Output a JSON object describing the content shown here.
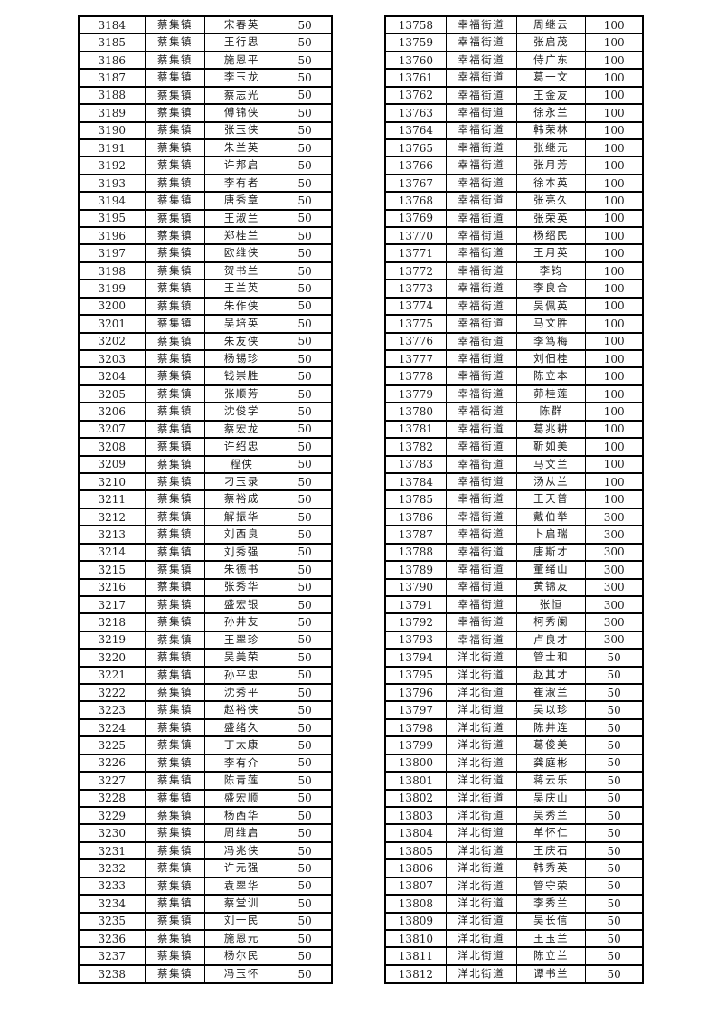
{
  "document": {
    "type": "scanned-roster-table-page",
    "background_color": "#ffffff",
    "text_color": "#1c1c1c",
    "border_color": "#000000"
  },
  "tables": [
    {
      "name": "left-roster",
      "columns": [
        "serial",
        "township",
        "name",
        "amount"
      ],
      "rows": [
        [
          "3184",
          "蔡集镇",
          "宋春英",
          "50"
        ],
        [
          "3185",
          "蔡集镇",
          "王行思",
          "50"
        ],
        [
          "3186",
          "蔡集镇",
          "施恩平",
          "50"
        ],
        [
          "3187",
          "蔡集镇",
          "李玉龙",
          "50"
        ],
        [
          "3188",
          "蔡集镇",
          "蔡志光",
          "50"
        ],
        [
          "3189",
          "蔡集镇",
          "傅锦侠",
          "50"
        ],
        [
          "3190",
          "蔡集镇",
          "张玉侠",
          "50"
        ],
        [
          "3191",
          "蔡集镇",
          "朱兰英",
          "50"
        ],
        [
          "3192",
          "蔡集镇",
          "许邦启",
          "50"
        ],
        [
          "3193",
          "蔡集镇",
          "李有者",
          "50"
        ],
        [
          "3194",
          "蔡集镇",
          "唐秀章",
          "50"
        ],
        [
          "3195",
          "蔡集镇",
          "王淑兰",
          "50"
        ],
        [
          "3196",
          "蔡集镇",
          "郑桂兰",
          "50"
        ],
        [
          "3197",
          "蔡集镇",
          "欧维侠",
          "50"
        ],
        [
          "3198",
          "蔡集镇",
          "贺书兰",
          "50"
        ],
        [
          "3199",
          "蔡集镇",
          "王兰英",
          "50"
        ],
        [
          "3200",
          "蔡集镇",
          "朱作侠",
          "50"
        ],
        [
          "3201",
          "蔡集镇",
          "吴培英",
          "50"
        ],
        [
          "3202",
          "蔡集镇",
          "朱友侠",
          "50"
        ],
        [
          "3203",
          "蔡集镇",
          "杨锡珍",
          "50"
        ],
        [
          "3204",
          "蔡集镇",
          "钱崇胜",
          "50"
        ],
        [
          "3205",
          "蔡集镇",
          "张顺芳",
          "50"
        ],
        [
          "3206",
          "蔡集镇",
          "沈俊学",
          "50"
        ],
        [
          "3207",
          "蔡集镇",
          "蔡宏龙",
          "50"
        ],
        [
          "3208",
          "蔡集镇",
          "许绍忠",
          "50"
        ],
        [
          "3209",
          "蔡集镇",
          "程侠",
          "50"
        ],
        [
          "3210",
          "蔡集镇",
          "刁玉录",
          "50"
        ],
        [
          "3211",
          "蔡集镇",
          "蔡裕成",
          "50"
        ],
        [
          "3212",
          "蔡集镇",
          "解振华",
          "50"
        ],
        [
          "3213",
          "蔡集镇",
          "刘西良",
          "50"
        ],
        [
          "3214",
          "蔡集镇",
          "刘秀强",
          "50"
        ],
        [
          "3215",
          "蔡集镇",
          "朱德书",
          "50"
        ],
        [
          "3216",
          "蔡集镇",
          "张秀华",
          "50"
        ],
        [
          "3217",
          "蔡集镇",
          "盛宏银",
          "50"
        ],
        [
          "3218",
          "蔡集镇",
          "孙井友",
          "50"
        ],
        [
          "3219",
          "蔡集镇",
          "王翠珍",
          "50"
        ],
        [
          "3220",
          "蔡集镇",
          "吴美荣",
          "50"
        ],
        [
          "3221",
          "蔡集镇",
          "孙平忠",
          "50"
        ],
        [
          "3222",
          "蔡集镇",
          "沈秀平",
          "50"
        ],
        [
          "3223",
          "蔡集镇",
          "赵裕侠",
          "50"
        ],
        [
          "3224",
          "蔡集镇",
          "盛绪久",
          "50"
        ],
        [
          "3225",
          "蔡集镇",
          "丁太康",
          "50"
        ],
        [
          "3226",
          "蔡集镇",
          "李有介",
          "50"
        ],
        [
          "3227",
          "蔡集镇",
          "陈青莲",
          "50"
        ],
        [
          "3228",
          "蔡集镇",
          "盛宏顺",
          "50"
        ],
        [
          "3229",
          "蔡集镇",
          "杨西华",
          "50"
        ],
        [
          "3230",
          "蔡集镇",
          "周维启",
          "50"
        ],
        [
          "3231",
          "蔡集镇",
          "冯兆侠",
          "50"
        ],
        [
          "3232",
          "蔡集镇",
          "许元强",
          "50"
        ],
        [
          "3233",
          "蔡集镇",
          "袁翠华",
          "50"
        ],
        [
          "3234",
          "蔡集镇",
          "蔡堂训",
          "50"
        ],
        [
          "3235",
          "蔡集镇",
          "刘一民",
          "50"
        ],
        [
          "3236",
          "蔡集镇",
          "施恩元",
          "50"
        ],
        [
          "3237",
          "蔡集镇",
          "杨尔民",
          "50"
        ],
        [
          "3238",
          "蔡集镇",
          "冯玉怀",
          "50"
        ]
      ]
    },
    {
      "name": "right-roster",
      "columns": [
        "serial",
        "township",
        "name",
        "amount"
      ],
      "rows": [
        [
          "13758",
          "幸福街道",
          "周继云",
          "100"
        ],
        [
          "13759",
          "幸福街道",
          "张启茂",
          "100"
        ],
        [
          "13760",
          "幸福街道",
          "侍广东",
          "100"
        ],
        [
          "13761",
          "幸福街道",
          "葛一文",
          "100"
        ],
        [
          "13762",
          "幸福街道",
          "王金友",
          "100"
        ],
        [
          "13763",
          "幸福街道",
          "徐永兰",
          "100"
        ],
        [
          "13764",
          "幸福街道",
          "韩荣林",
          "100"
        ],
        [
          "13765",
          "幸福街道",
          "张继元",
          "100"
        ],
        [
          "13766",
          "幸福街道",
          "张月芳",
          "100"
        ],
        [
          "13767",
          "幸福街道",
          "徐本英",
          "100"
        ],
        [
          "13768",
          "幸福街道",
          "张亮久",
          "100"
        ],
        [
          "13769",
          "幸福街道",
          "张荣英",
          "100"
        ],
        [
          "13770",
          "幸福街道",
          "杨绍民",
          "100"
        ],
        [
          "13771",
          "幸福街道",
          "王月英",
          "100"
        ],
        [
          "13772",
          "幸福街道",
          "李钧",
          "100"
        ],
        [
          "13773",
          "幸福街道",
          "李良合",
          "100"
        ],
        [
          "13774",
          "幸福街道",
          "吴佩英",
          "100"
        ],
        [
          "13775",
          "幸福街道",
          "马文胜",
          "100"
        ],
        [
          "13776",
          "幸福街道",
          "李笃梅",
          "100"
        ],
        [
          "13777",
          "幸福街道",
          "刘佃桂",
          "100"
        ],
        [
          "13778",
          "幸福街道",
          "陈立本",
          "100"
        ],
        [
          "13779",
          "幸福街道",
          "茆桂莲",
          "100"
        ],
        [
          "13780",
          "幸福街道",
          "陈群",
          "100"
        ],
        [
          "13781",
          "幸福街道",
          "葛兆耕",
          "100"
        ],
        [
          "13782",
          "幸福街道",
          "靳如美",
          "100"
        ],
        [
          "13783",
          "幸福街道",
          "马文兰",
          "100"
        ],
        [
          "13784",
          "幸福街道",
          "汤从兰",
          "100"
        ],
        [
          "13785",
          "幸福街道",
          "王天普",
          "100"
        ],
        [
          "13786",
          "幸福街道",
          "戴伯举",
          "300"
        ],
        [
          "13787",
          "幸福街道",
          "卜启瑞",
          "300"
        ],
        [
          "13788",
          "幸福街道",
          "唐斯才",
          "300"
        ],
        [
          "13789",
          "幸福街道",
          "董绪山",
          "300"
        ],
        [
          "13790",
          "幸福街道",
          "黄锦友",
          "300"
        ],
        [
          "13791",
          "幸福街道",
          "张恒",
          "300"
        ],
        [
          "13792",
          "幸福街道",
          "柯秀阑",
          "300"
        ],
        [
          "13793",
          "幸福街道",
          "卢良才",
          "300"
        ],
        [
          "13794",
          "洋北街道",
          "管士和",
          "50"
        ],
        [
          "13795",
          "洋北街道",
          "赵其才",
          "50"
        ],
        [
          "13796",
          "洋北街道",
          "崔淑兰",
          "50"
        ],
        [
          "13797",
          "洋北街道",
          "吴以珍",
          "50"
        ],
        [
          "13798",
          "洋北街道",
          "陈井连",
          "50"
        ],
        [
          "13799",
          "洋北街道",
          "葛俊美",
          "50"
        ],
        [
          "13800",
          "洋北街道",
          "龚庭彬",
          "50"
        ],
        [
          "13801",
          "洋北街道",
          "蒋云乐",
          "50"
        ],
        [
          "13802",
          "洋北街道",
          "吴庆山",
          "50"
        ],
        [
          "13803",
          "洋北街道",
          "吴秀兰",
          "50"
        ],
        [
          "13804",
          "洋北街道",
          "单怀仁",
          "50"
        ],
        [
          "13805",
          "洋北街道",
          "王庆石",
          "50"
        ],
        [
          "13806",
          "洋北街道",
          "韩秀英",
          "50"
        ],
        [
          "13807",
          "洋北街道",
          "管守荣",
          "50"
        ],
        [
          "13808",
          "洋北街道",
          "李秀兰",
          "50"
        ],
        [
          "13809",
          "洋北街道",
          "吴长信",
          "50"
        ],
        [
          "13810",
          "洋北街道",
          "王玉兰",
          "50"
        ],
        [
          "13811",
          "洋北街道",
          "陈立兰",
          "50"
        ],
        [
          "13812",
          "洋北街道",
          "谭书兰",
          "50"
        ]
      ]
    }
  ]
}
